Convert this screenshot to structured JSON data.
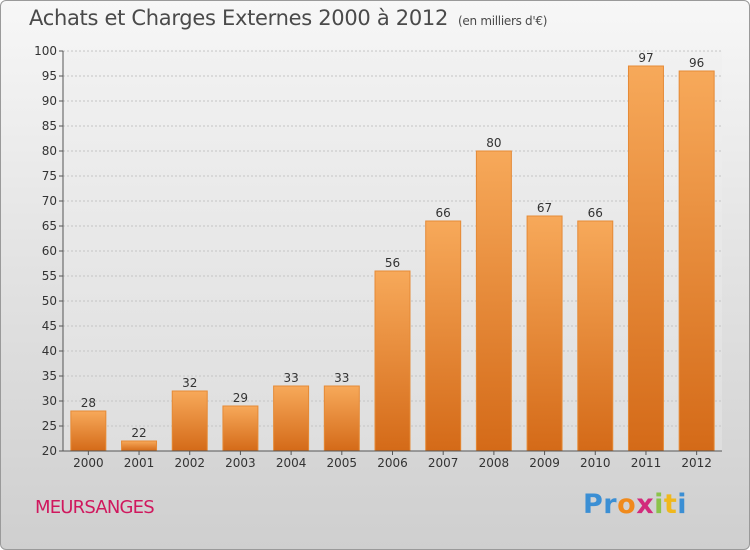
{
  "title": "Achats et Charges Externes 2000 à 2012",
  "subtitle": "(en milliers d'€)",
  "commune": "MEURSANGES",
  "logo": {
    "letters": [
      {
        "ch": "P",
        "color": "#3b8fd4"
      },
      {
        "ch": "r",
        "color": "#3b8fd4"
      },
      {
        "ch": "o",
        "color": "#f08a1c"
      },
      {
        "ch": "x",
        "color": "#d22b7c"
      },
      {
        "ch": "i",
        "color": "#8bc34a"
      },
      {
        "ch": "t",
        "color": "#f0b81c"
      },
      {
        "ch": "i",
        "color": "#3b8fd4"
      }
    ]
  },
  "colors": {
    "bar_top": "#f7a95a",
    "bar_bottom": "#d46a18",
    "bar_edge": "#e58a36",
    "commune": "#d0185e"
  },
  "chart_data": {
    "type": "bar",
    "title": "Achats et Charges Externes 2000 à 2012",
    "subtitle": "(en milliers d'€)",
    "xlabel": "",
    "ylabel": "",
    "categories": [
      "2000",
      "2001",
      "2002",
      "2003",
      "2004",
      "2005",
      "2006",
      "2007",
      "2008",
      "2009",
      "2010",
      "2011",
      "2012"
    ],
    "values": [
      28,
      22,
      32,
      29,
      33,
      33,
      56,
      66,
      80,
      67,
      66,
      97,
      96
    ],
    "ylim": [
      20,
      100
    ],
    "yticks": [
      20,
      25,
      30,
      35,
      40,
      45,
      50,
      55,
      60,
      65,
      70,
      75,
      80,
      85,
      90,
      95,
      100
    ],
    "grid": true,
    "legend": "none"
  }
}
